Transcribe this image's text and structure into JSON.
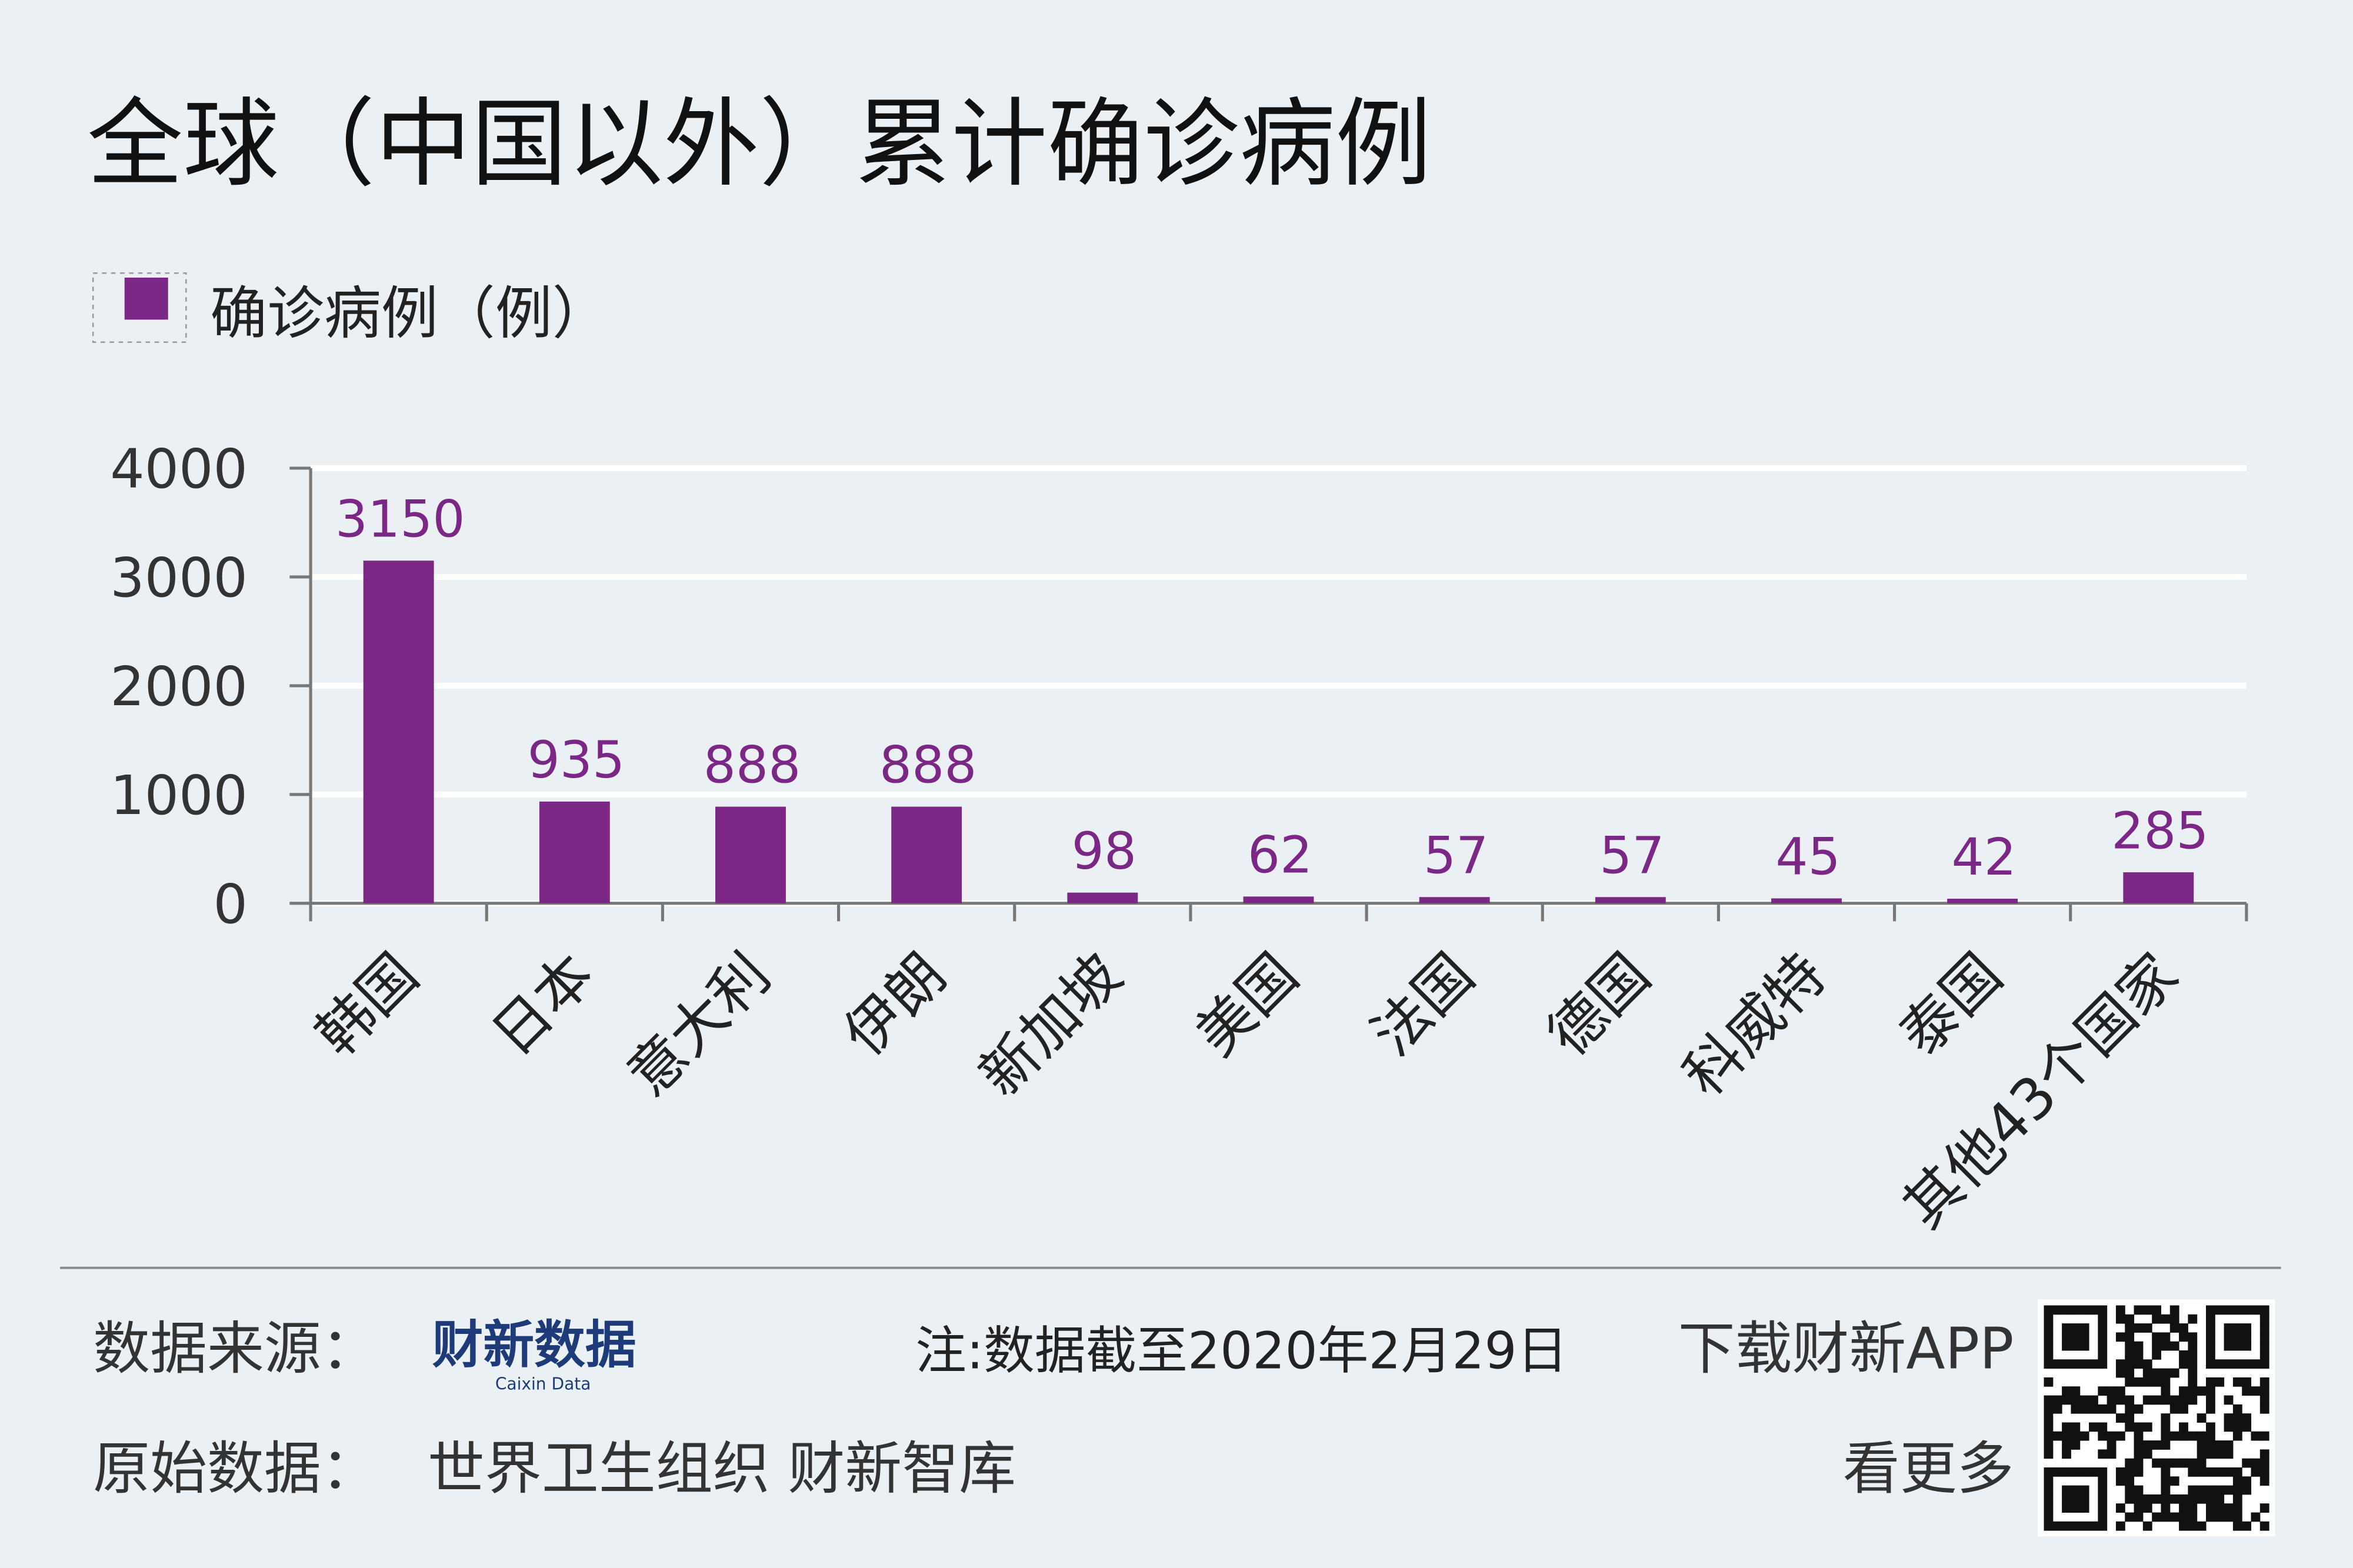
{
  "chart_data": {
    "type": "bar",
    "title": "全球（中国以外）累计确诊病例",
    "series": [
      {
        "name": "确诊病例（例）",
        "color": "#7b2785",
        "values": [
          3150,
          935,
          888,
          888,
          98,
          62,
          57,
          57,
          45,
          42,
          285
        ]
      }
    ],
    "categories": [
      "韩国",
      "日本",
      "意大利",
      "伊朗",
      "新加坡",
      "美国",
      "法国",
      "德国",
      "科威特",
      "泰国",
      "其他43个国家"
    ],
    "ylim": [
      0,
      4000
    ],
    "yticks": [
      0,
      1000,
      2000,
      3000,
      4000
    ],
    "grid": true
  },
  "footer": {
    "source_label": "数据来源：",
    "source_logo": "财新数据",
    "source_logo_sub": "Caixin Data",
    "note": "注:数据截至2020年2月29日",
    "app": "下载财新APP",
    "origin_label": "原始数据：",
    "origin": "世界卫生组织 财新智库",
    "more": "看更多"
  }
}
